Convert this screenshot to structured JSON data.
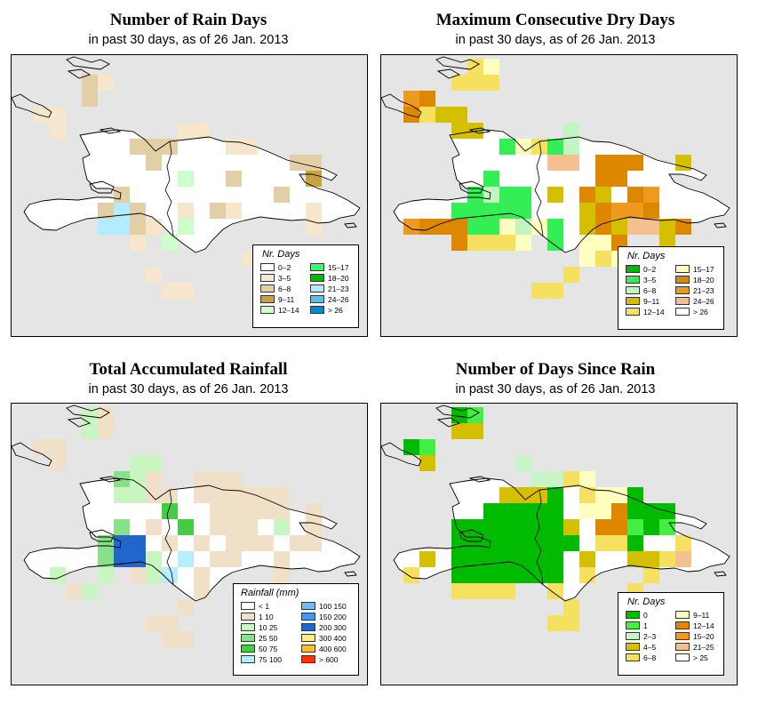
{
  "panels": [
    {
      "id": "rain-days",
      "title": "Number of Rain Days",
      "subtitle": "in past 30 days, as of  26 Jan. 2013",
      "legend": {
        "title": "Nr. Days",
        "items": [
          {
            "label": "0–2",
            "color": "#ffffff"
          },
          {
            "label": "3–5",
            "color": "#f5e6cc"
          },
          {
            "label": "6–8",
            "color": "#e3cfa5"
          },
          {
            "label": "9–11",
            "color": "#c9a43c"
          },
          {
            "label": "12–14",
            "color": "#ccffcc"
          },
          {
            "label": "15–17",
            "color": "#33ff66"
          },
          {
            "label": "18–20",
            "color": "#00bb00"
          },
          {
            "label": "21–23",
            "color": "#b3ecff"
          },
          {
            "label": "24–26",
            "color": "#55c2f2"
          },
          {
            "label": "> 26",
            "color": "#0088dd"
          }
        ]
      },
      "grid": [
        "..................",
        "...CB.............",
        "...C..............",
        "BB................",
        ".B.......BB.......",
        "......CCC...BB....",
        ".......C........CC",
        ".........E..C....D",
        ".....C.........C..",
        "....CHC..B.CB....B",
        "....HHCB.E.......B",
        "......B.E.........",
        ".............B....",
        ".......B..........",
        "........BB........"
      ]
    },
    {
      "id": "dry-days",
      "title": "Maximum Consecutive Dry Days",
      "subtitle": "in past 30 days, as of  26 Jan. 2013",
      "legend": {
        "title": "Nr. Days",
        "items": [
          {
            "label": "0–2",
            "color": "#00bb00"
          },
          {
            "label": "3–5",
            "color": "#33ee55"
          },
          {
            "label": "6–8",
            "color": "#c2f5c2"
          },
          {
            "label": "9–11",
            "color": "#d4c000"
          },
          {
            "label": "12–14",
            "color": "#f5e060"
          },
          {
            "label": "15–17",
            "color": "#ffffc0"
          },
          {
            "label": "18–20",
            "color": "#dd8800"
          },
          {
            "label": "21–23",
            "color": "#ee9a20"
          },
          {
            "label": "24–26",
            "color": "#f5c090"
          },
          {
            "label": "> 26",
            "color": "#ffffff"
          }
        ]
      },
      "grid": [
        "....EF............",
        "...EEE............",
        "HG................",
        "GEDD..............",
        "...DD.....C.......",
        "......BFEBC.......",
        ".........II.GGG..D",
        ".....B......GG...",
        "....BCBB.D.GD.GH.",
        "...BBBBB...DGHHG.",
        "HGGGBBFCFB.DGDIIDG",
        "...GEEEF.B.FFG..D",
        "...........FEF....",
        "..........E.......",
        "........EE........"
      ]
    },
    {
      "id": "rainfall",
      "title": "Total Accumulated Rainfall",
      "subtitle": "in past 30 days, as of  26 Jan. 2013",
      "legend": {
        "title": "Rainfall (mm)",
        "items": [
          {
            "label": "< 1",
            "color": "#ffffff"
          },
          {
            "label": "1     10",
            "color": "#f0e0c8"
          },
          {
            "label": "10    25",
            "color": "#c8f5c0"
          },
          {
            "label": "25    50",
            "color": "#88e088"
          },
          {
            "label": "50    75",
            "color": "#44cc44"
          },
          {
            "label": "75    100",
            "color": "#b8ecff"
          },
          {
            "label": "100  150",
            "color": "#77bbee"
          },
          {
            "label": "150  200",
            "color": "#4499ee"
          },
          {
            "label": "200  300",
            "color": "#2266cc"
          },
          {
            "label": "300  400",
            "color": "#ffee88"
          },
          {
            "label": "400  600",
            "color": "#ffbb33"
          },
          {
            "label": "> 600",
            "color": "#ff3300"
          }
        ]
      },
      "grid": [
        "...CB.............",
        "...CB.............",
        "BB................",
        ".B....CC..........",
        ".....DCB..BBB.....",
        ".....CCBB.BBBBBB..",
        "........E..BBBBB.B",
        ".....D.B.E.BBB.C.B",
        "....DII.B.B.BBB.BB",
        "....DIIC.F.BB..B..",
        ".C..C.BCF.B....B..",
        "..BC......B.......",
        ".........B........",
        ".......BB.........",
        "........BB........"
      ]
    },
    {
      "id": "days-since-rain",
      "title": "Number of Days Since Rain",
      "subtitle": "in past 30 days, as of  26 Jan. 2013",
      "legend": {
        "title": "Nr. Days",
        "items": [
          {
            "label": "0",
            "color": "#00bb00"
          },
          {
            "label": "1",
            "color": "#44ee44"
          },
          {
            "label": "2–3",
            "color": "#c8f5c8"
          },
          {
            "label": "4–5",
            "color": "#d4c000"
          },
          {
            "label": "6–8",
            "color": "#f5e060"
          },
          {
            "label": "9–11",
            "color": "#ffffc0"
          },
          {
            "label": "12–14",
            "color": "#dd8800"
          },
          {
            "label": "15–20",
            "color": "#ee9a20"
          },
          {
            "label": "21–25",
            "color": "#f5c090"
          },
          {
            "label": "> 25",
            "color": "#ffffff"
          }
        ]
      },
      "grid": [
        "...AB.............",
        "...DD.............",
        "AB................",
        ".D.....C..........",
        "........CCEF......",
        "......DDDA.EFFA...",
        ".....AAAAA.FFGAAA.",
        "...AAAAAAAD.GGBAB.",
        "...AAAAAAAA.EEA..E",
        ".D.AAAAAAA.D..DDEI",
        "E..AAAAAAA.E...E.",
        "...EEEE..E....E...",
        "..........E.......",
        ".........EE......."
      ]
    }
  ]
}
